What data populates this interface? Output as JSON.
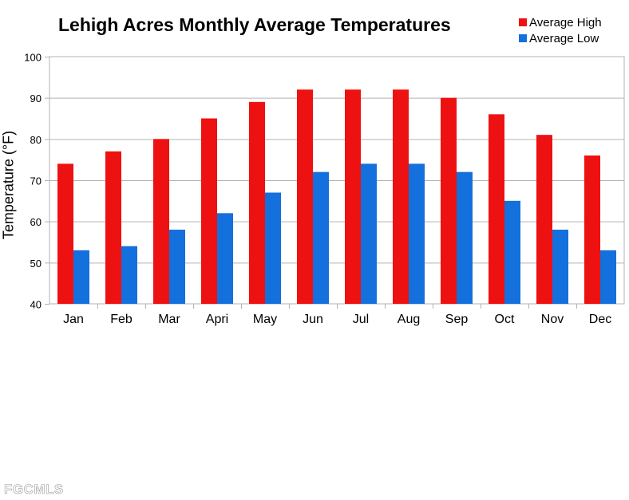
{
  "chart_data": {
    "type": "bar",
    "title": "Lehigh Acres Monthly Average Temperatures",
    "xlabel": "",
    "ylabel": "Temperature (°F)",
    "ylim": [
      40,
      100
    ],
    "yticks": [
      40,
      50,
      60,
      70,
      80,
      90,
      100
    ],
    "grid": true,
    "legend_position": "top-right",
    "categories": [
      "Jan",
      "Feb",
      "Mar",
      "Apri",
      "May",
      "Jun",
      "Jul",
      "Aug",
      "Sep",
      "Oct",
      "Nov",
      "Dec"
    ],
    "series": [
      {
        "name": "Average High",
        "color": "#ee1111",
        "values": [
          74,
          77,
          80,
          85,
          89,
          92,
          92,
          92,
          90,
          86,
          81,
          76
        ]
      },
      {
        "name": "Average Low",
        "color": "#1470dc",
        "values": [
          53,
          54,
          58,
          62,
          67,
          72,
          74,
          74,
          72,
          65,
          58,
          53
        ]
      }
    ]
  },
  "watermark": "FGCMLS"
}
